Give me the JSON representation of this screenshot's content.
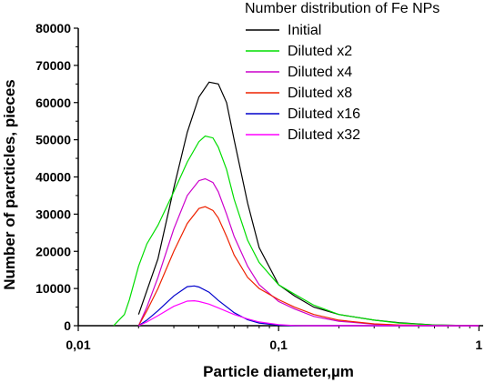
{
  "chart_data": {
    "type": "line",
    "title": "",
    "xlabel": "Particle diameter,µm",
    "ylabel": "Number of parcticles, pieces",
    "xscale": "log",
    "xlim": [
      0.01,
      1.05
    ],
    "ylim": [
      0,
      80000
    ],
    "x_ticks": [
      {
        "value": 0.01,
        "label": "0,01"
      },
      {
        "value": 0.1,
        "label": "0,1"
      },
      {
        "value": 1,
        "label": "1"
      }
    ],
    "y_ticks": [
      {
        "value": 0,
        "label": "0"
      },
      {
        "value": 10000,
        "label": "10000"
      },
      {
        "value": 20000,
        "label": "20000"
      },
      {
        "value": 30000,
        "label": "30000"
      },
      {
        "value": 40000,
        "label": "40000"
      },
      {
        "value": 50000,
        "label": "50000"
      },
      {
        "value": 60000,
        "label": "60000"
      },
      {
        "value": 70000,
        "label": "70000"
      },
      {
        "value": 80000,
        "label": "80000"
      }
    ],
    "grid": false,
    "legend": {
      "title": "Number distribution of Fe NPs",
      "position": "top-right"
    },
    "series": [
      {
        "name": "Initial",
        "color": "#000000",
        "points": [
          [
            0.02,
            3000
          ],
          [
            0.025,
            18000
          ],
          [
            0.03,
            37000
          ],
          [
            0.035,
            52000
          ],
          [
            0.04,
            61500
          ],
          [
            0.045,
            65500
          ],
          [
            0.05,
            65000
          ],
          [
            0.055,
            60000
          ],
          [
            0.06,
            50000
          ],
          [
            0.07,
            33000
          ],
          [
            0.08,
            21000
          ],
          [
            0.1,
            11000
          ],
          [
            0.12,
            8000
          ],
          [
            0.15,
            5000
          ],
          [
            0.2,
            3000
          ],
          [
            0.3,
            1500
          ],
          [
            0.4,
            800
          ],
          [
            0.6,
            200
          ],
          [
            1.0,
            0
          ]
        ]
      },
      {
        "name": "Diluted x2",
        "color": "#00dd00",
        "points": [
          [
            0.015,
            0
          ],
          [
            0.017,
            3000
          ],
          [
            0.018,
            7000
          ],
          [
            0.02,
            16000
          ],
          [
            0.022,
            22000
          ],
          [
            0.025,
            27000
          ],
          [
            0.03,
            36000
          ],
          [
            0.035,
            44000
          ],
          [
            0.04,
            49500
          ],
          [
            0.043,
            51000
          ],
          [
            0.047,
            50500
          ],
          [
            0.05,
            48000
          ],
          [
            0.055,
            42000
          ],
          [
            0.06,
            34000
          ],
          [
            0.07,
            23000
          ],
          [
            0.08,
            17000
          ],
          [
            0.1,
            11000
          ],
          [
            0.12,
            8500
          ],
          [
            0.15,
            5500
          ],
          [
            0.2,
            3000
          ],
          [
            0.3,
            1500
          ],
          [
            0.4,
            700
          ],
          [
            0.6,
            200
          ],
          [
            1.0,
            0
          ]
        ]
      },
      {
        "name": "Diluted x4",
        "color": "#cc00cc",
        "points": [
          [
            0.02,
            0
          ],
          [
            0.022,
            5000
          ],
          [
            0.025,
            13000
          ],
          [
            0.03,
            26000
          ],
          [
            0.035,
            35000
          ],
          [
            0.04,
            39000
          ],
          [
            0.043,
            39500
          ],
          [
            0.047,
            38500
          ],
          [
            0.05,
            36000
          ],
          [
            0.055,
            30000
          ],
          [
            0.06,
            24000
          ],
          [
            0.07,
            16000
          ],
          [
            0.08,
            11000
          ],
          [
            0.1,
            6500
          ],
          [
            0.12,
            4500
          ],
          [
            0.15,
            2500
          ],
          [
            0.2,
            1200
          ],
          [
            0.3,
            400
          ],
          [
            0.4,
            150
          ],
          [
            0.6,
            0
          ],
          [
            1.0,
            0
          ]
        ]
      },
      {
        "name": "Diluted x8",
        "color": "#ee2200",
        "points": [
          [
            0.02,
            0
          ],
          [
            0.022,
            4000
          ],
          [
            0.025,
            10000
          ],
          [
            0.03,
            20000
          ],
          [
            0.035,
            27500
          ],
          [
            0.04,
            31500
          ],
          [
            0.043,
            32000
          ],
          [
            0.047,
            31000
          ],
          [
            0.05,
            29000
          ],
          [
            0.055,
            24000
          ],
          [
            0.06,
            19000
          ],
          [
            0.07,
            13000
          ],
          [
            0.08,
            10000
          ],
          [
            0.1,
            7000
          ],
          [
            0.12,
            5000
          ],
          [
            0.15,
            3000
          ],
          [
            0.2,
            1500
          ],
          [
            0.3,
            500
          ],
          [
            0.4,
            200
          ],
          [
            0.6,
            0
          ],
          [
            1.0,
            0
          ]
        ]
      },
      {
        "name": "Diluted x16",
        "color": "#0000cc",
        "points": [
          [
            0.02,
            0
          ],
          [
            0.022,
            1500
          ],
          [
            0.025,
            4000
          ],
          [
            0.03,
            8000
          ],
          [
            0.035,
            10500
          ],
          [
            0.038,
            10700
          ],
          [
            0.04,
            10400
          ],
          [
            0.045,
            9000
          ],
          [
            0.05,
            6800
          ],
          [
            0.06,
            3500
          ],
          [
            0.07,
            1600
          ],
          [
            0.08,
            700
          ],
          [
            0.1,
            150
          ],
          [
            0.12,
            0
          ],
          [
            1.0,
            0
          ]
        ]
      },
      {
        "name": "Diluted x32",
        "color": "#ff00ff",
        "points": [
          [
            0.02,
            0
          ],
          [
            0.022,
            1000
          ],
          [
            0.025,
            2700
          ],
          [
            0.03,
            5200
          ],
          [
            0.035,
            6600
          ],
          [
            0.038,
            6700
          ],
          [
            0.04,
            6500
          ],
          [
            0.045,
            5800
          ],
          [
            0.05,
            4800
          ],
          [
            0.06,
            3000
          ],
          [
            0.07,
            1800
          ],
          [
            0.08,
            1000
          ],
          [
            0.1,
            300
          ],
          [
            0.12,
            50
          ],
          [
            0.15,
            0
          ],
          [
            1.0,
            0
          ]
        ]
      }
    ]
  }
}
